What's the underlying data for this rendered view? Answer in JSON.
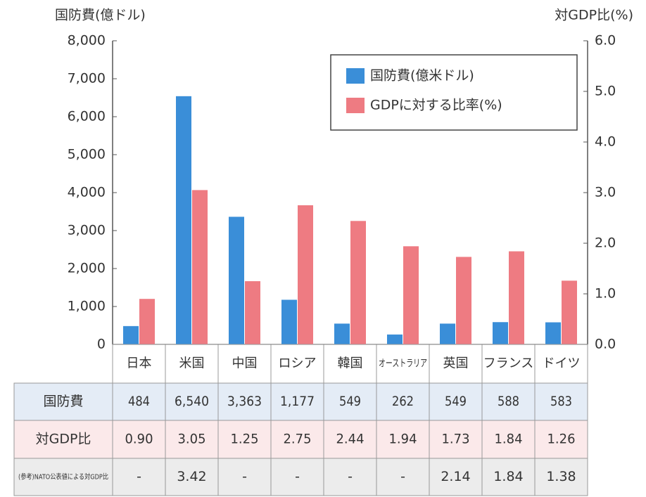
{
  "chart_data": {
    "type": "bar",
    "y_axis_title": "国防費(億ドル)",
    "y2_axis_title": "対GDP比(%)",
    "categories": [
      "日本",
      "米国",
      "中国",
      "ロシア",
      "韓国",
      "オーストラリア",
      "英国",
      "フランス",
      "ドイツ"
    ],
    "series": [
      {
        "name": "国防費(億米ドル)",
        "color": "#3a8ed8",
        "values": [
          484,
          6540,
          3363,
          1177,
          549,
          262,
          549,
          588,
          583
        ],
        "value_labels": [
          "484",
          "6,540",
          "3,363",
          "1,177",
          "549",
          "262",
          "549",
          "588",
          "583"
        ]
      },
      {
        "name": "GDPに対する比率(%)",
        "color": "#ee7b82",
        "axis": "y2",
        "values": [
          0.9,
          3.05,
          1.25,
          2.75,
          2.44,
          1.94,
          1.73,
          1.84,
          1.26
        ],
        "value_labels": [
          "0.90",
          "3.05",
          "1.25",
          "2.75",
          "2.44",
          "1.94",
          "1.73",
          "1.84",
          "1.26"
        ]
      }
    ],
    "ylim": [
      0,
      8000
    ],
    "yticks": [
      0,
      {
        "value": 1000,
        "label": "1,000"
      },
      {
        "value": 2000,
        "label": "2,000"
      },
      {
        "value": 3000,
        "label": "3,000"
      },
      {
        "value": 4000,
        "label": "4,000"
      },
      {
        "value": 5000,
        "label": "5,000"
      },
      {
        "value": 6000,
        "label": "6,000"
      },
      {
        "value": 7000,
        "label": "7,000"
      },
      {
        "value": 8000,
        "label": "8,000"
      }
    ],
    "y2lim": [
      0,
      6
    ],
    "y2ticks": [
      {
        "value": 0,
        "label": "0.0"
      },
      {
        "value": 1,
        "label": "1.0"
      },
      {
        "value": 2,
        "label": "2.0"
      },
      {
        "value": 3,
        "label": "3.0"
      },
      {
        "value": 4,
        "label": "4.0"
      },
      {
        "value": 5,
        "label": "5.0"
      },
      {
        "value": 6,
        "label": "6.0"
      }
    ],
    "legend": "upper right",
    "table": {
      "row_labels": [
        "国防費",
        "対GDP比",
        "(参考)NATO公表値による対GDP比"
      ],
      "nato_values": [
        "-",
        "3.42",
        "-",
        "-",
        "-",
        "-",
        "2.14",
        "1.84",
        "1.38"
      ]
    }
  }
}
